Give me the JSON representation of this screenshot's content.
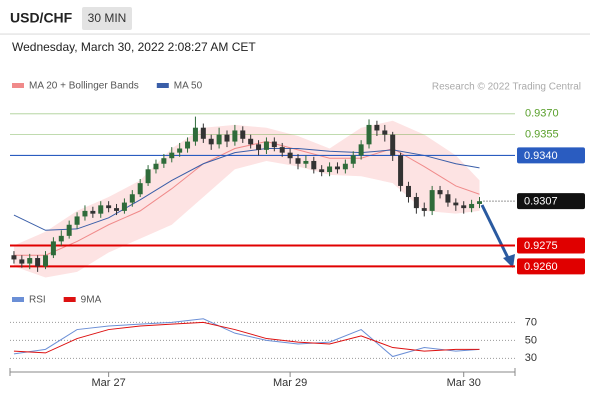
{
  "header": {
    "symbol": "USD/CHF",
    "interval": "30 MIN",
    "timestamp": "Wednesday, March 30, 2022 2:08:27 AM CET"
  },
  "chart_data": [
    {
      "type": "candlestick",
      "source": "Research © 2022 Trading Central",
      "xlim": [
        -0.5,
        63.5
      ],
      "xticks": [
        {
          "value": 12,
          "label": "Mar 27"
        },
        {
          "value": 35,
          "label": "Mar 29"
        },
        {
          "value": 57,
          "label": "Mar 30"
        }
      ],
      "ylim": [
        0.9248,
        0.9398
      ],
      "up_color": "#2f6b3a",
      "down_color": "#333333",
      "open": [
        0.9268,
        0.9265,
        0.9262,
        0.9266,
        0.926,
        0.9268,
        0.9278,
        0.9282,
        0.929,
        0.9296,
        0.93,
        0.9298,
        0.9304,
        0.9302,
        0.93,
        0.9306,
        0.9312,
        0.932,
        0.933,
        0.9334,
        0.9338,
        0.9342,
        0.9345,
        0.935,
        0.936,
        0.9352,
        0.9348,
        0.9355,
        0.935,
        0.9358,
        0.9352,
        0.9348,
        0.9344,
        0.935,
        0.9346,
        0.9342,
        0.9338,
        0.9334,
        0.9336,
        0.933,
        0.9328,
        0.9332,
        0.933,
        0.9334,
        0.934,
        0.9348,
        0.9362,
        0.9358,
        0.9355,
        0.934,
        0.9318,
        0.931,
        0.9302,
        0.93,
        0.9315,
        0.9312,
        0.9306,
        0.9304,
        0.9302,
        0.9305
      ],
      "high": [
        0.9271,
        0.9268,
        0.9269,
        0.9268,
        0.9271,
        0.9281,
        0.9286,
        0.9293,
        0.9299,
        0.9304,
        0.9303,
        0.9307,
        0.9307,
        0.9305,
        0.9309,
        0.9315,
        0.9323,
        0.9333,
        0.9337,
        0.9341,
        0.9346,
        0.9349,
        0.9353,
        0.9368,
        0.9363,
        0.9355,
        0.936,
        0.9358,
        0.9362,
        0.9361,
        0.9355,
        0.9351,
        0.9353,
        0.9353,
        0.9349,
        0.9345,
        0.9341,
        0.934,
        0.9339,
        0.9333,
        0.9335,
        0.9335,
        0.9337,
        0.9343,
        0.9351,
        0.9366,
        0.9365,
        0.9362,
        0.9357,
        0.9342,
        0.9321,
        0.9313,
        0.9306,
        0.9318,
        0.9318,
        0.9315,
        0.9309,
        0.9307,
        0.9308,
        0.931
      ],
      "low": [
        0.9262,
        0.9259,
        0.9258,
        0.9256,
        0.9258,
        0.9266,
        0.9275,
        0.928,
        0.9287,
        0.9293,
        0.9295,
        0.9295,
        0.9299,
        0.9297,
        0.9298,
        0.9303,
        0.931,
        0.9318,
        0.9327,
        0.9331,
        0.9335,
        0.9339,
        0.9342,
        0.9347,
        0.9349,
        0.9344,
        0.9345,
        0.9346,
        0.9347,
        0.9349,
        0.9345,
        0.934,
        0.9341,
        0.9343,
        0.9339,
        0.9334,
        0.933,
        0.9331,
        0.9327,
        0.9325,
        0.9325,
        0.9327,
        0.9327,
        0.9331,
        0.9337,
        0.9345,
        0.9354,
        0.935,
        0.9336,
        0.9314,
        0.9306,
        0.9298,
        0.9296,
        0.9297,
        0.9309,
        0.9303,
        0.93,
        0.9298,
        0.9299,
        0.9302
      ],
      "close": [
        0.9265,
        0.9262,
        0.9266,
        0.926,
        0.9268,
        0.9278,
        0.9282,
        0.929,
        0.9296,
        0.93,
        0.9298,
        0.9304,
        0.9302,
        0.93,
        0.9306,
        0.9312,
        0.932,
        0.933,
        0.9334,
        0.9338,
        0.9342,
        0.9345,
        0.935,
        0.936,
        0.9352,
        0.9348,
        0.9355,
        0.935,
        0.9358,
        0.9352,
        0.9348,
        0.9344,
        0.935,
        0.9346,
        0.9342,
        0.9338,
        0.9334,
        0.9336,
        0.933,
        0.9328,
        0.9332,
        0.933,
        0.9334,
        0.934,
        0.9348,
        0.9362,
        0.9358,
        0.9355,
        0.934,
        0.9318,
        0.931,
        0.9302,
        0.93,
        0.9315,
        0.9312,
        0.9306,
        0.9304,
        0.9302,
        0.9305,
        0.9307
      ],
      "overlay_x": [
        0,
        4,
        8,
        12,
        16,
        20,
        24,
        28,
        32,
        36,
        40,
        44,
        48,
        52,
        56,
        59
      ],
      "series": [
        {
          "name": "MA 20 + Bollinger Bands",
          "color": "#f08a8a",
          "band_color": "#fde3e3",
          "values": [
            0.9268,
            0.9268,
            0.9278,
            0.929,
            0.93,
            0.9316,
            0.9334,
            0.9345,
            0.935,
            0.9344,
            0.9338,
            0.9338,
            0.9345,
            0.9332,
            0.9318,
            0.9312
          ],
          "upper": [
            0.9275,
            0.9285,
            0.93,
            0.931,
            0.9322,
            0.9345,
            0.936,
            0.9362,
            0.936,
            0.9354,
            0.9345,
            0.936,
            0.9365,
            0.9355,
            0.934,
            0.9322
          ],
          "lower": [
            0.926,
            0.9252,
            0.9256,
            0.927,
            0.928,
            0.929,
            0.931,
            0.933,
            0.9336,
            0.9332,
            0.9326,
            0.9325,
            0.932,
            0.93,
            0.9298,
            0.93
          ]
        },
        {
          "name": "MA 50",
          "color": "#3a5ea8",
          "values": [
            0.9297,
            0.9286,
            0.9287,
            0.9295,
            0.9308,
            0.9322,
            0.9334,
            0.9342,
            0.9345,
            0.9345,
            0.9343,
            0.9342,
            0.9344,
            0.934,
            0.9334,
            0.9331
          ]
        }
      ],
      "levels": [
        {
          "value": 0.937,
          "label": "0.9370",
          "color": "#5aa02c",
          "style": "text"
        },
        {
          "value": 0.9355,
          "label": "0.9355",
          "color": "#5aa02c",
          "style": "text"
        },
        {
          "value": 0.934,
          "label": "0.9340",
          "color": "#2a5cc0",
          "style": "box"
        },
        {
          "value": 0.9307,
          "label": "0.9307",
          "color": "#111111",
          "style": "current"
        },
        {
          "value": 0.9275,
          "label": "0.9275",
          "color": "#e00000",
          "style": "box"
        },
        {
          "value": 0.926,
          "label": "0.9260",
          "color": "#e00000",
          "style": "box"
        }
      ]
    },
    {
      "type": "line",
      "xlim": [
        -0.5,
        63.5
      ],
      "ylim": [
        17,
        86
      ],
      "yticks": [
        70,
        50,
        30
      ],
      "x": [
        0,
        4,
        8,
        12,
        16,
        20,
        24,
        28,
        32,
        36,
        40,
        44,
        48,
        52,
        56,
        59
      ],
      "series": [
        {
          "name": "RSI",
          "color": "#6b8fd6",
          "values": [
            35,
            40,
            62,
            66,
            68,
            70,
            74,
            58,
            50,
            46,
            48,
            62,
            32,
            42,
            38,
            40
          ]
        },
        {
          "name": "9MA",
          "color": "#dd1111",
          "values": [
            38,
            36,
            52,
            62,
            66,
            68,
            70,
            62,
            52,
            48,
            46,
            55,
            42,
            38,
            40,
            40
          ]
        }
      ]
    }
  ]
}
